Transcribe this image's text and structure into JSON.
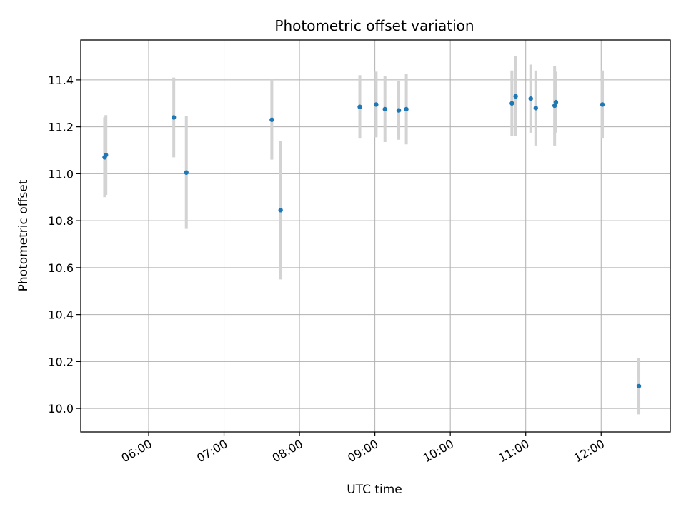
{
  "chart_data": {
    "type": "scatter",
    "title": "Photometric offset variation",
    "xlabel": "UTC time",
    "ylabel": "Photometric offset",
    "x_ticks": [
      "06:00",
      "07:00",
      "08:00",
      "09:00",
      "10:00",
      "11:00",
      "12:00"
    ],
    "x_tick_hours": [
      6,
      7,
      8,
      9,
      10,
      11,
      12
    ],
    "xlim": [
      "05:06",
      "12:55"
    ],
    "y_ticks": [
      "10.0",
      "10.2",
      "10.4",
      "10.6",
      "10.8",
      "11.0",
      "11.2",
      "11.4"
    ],
    "y_tick_values": [
      10.0,
      10.2,
      10.4,
      10.6,
      10.8,
      11.0,
      11.2,
      11.4
    ],
    "ylim": [
      9.9,
      11.57
    ],
    "grid": true,
    "point_color": "#1f77b4",
    "errorbar_color": "#d3d3d3",
    "points": [
      {
        "time": "05:25",
        "y": 11.07,
        "err": 0.17
      },
      {
        "time": "05:26",
        "y": 11.08,
        "err": 0.17
      },
      {
        "time": "06:20",
        "y": 11.24,
        "err": 0.17
      },
      {
        "time": "06:30",
        "y": 11.005,
        "err": 0.24
      },
      {
        "time": "07:38",
        "y": 11.23,
        "err": 0.17
      },
      {
        "time": "07:45",
        "y": 10.845,
        "err": 0.295
      },
      {
        "time": "08:48",
        "y": 11.285,
        "err": 0.135
      },
      {
        "time": "09:01",
        "y": 11.295,
        "err": 0.14
      },
      {
        "time": "09:08",
        "y": 11.275,
        "err": 0.14
      },
      {
        "time": "09:19",
        "y": 11.27,
        "err": 0.125
      },
      {
        "time": "09:25",
        "y": 11.275,
        "err": 0.15
      },
      {
        "time": "10:49",
        "y": 11.3,
        "err": 0.14
      },
      {
        "time": "10:52",
        "y": 11.33,
        "err": 0.17
      },
      {
        "time": "11:04",
        "y": 11.32,
        "err": 0.145
      },
      {
        "time": "11:08",
        "y": 11.28,
        "err": 0.16
      },
      {
        "time": "11:23",
        "y": 11.29,
        "err": 0.17
      },
      {
        "time": "11:24",
        "y": 11.305,
        "err": 0.13
      },
      {
        "time": "12:01",
        "y": 11.295,
        "err": 0.145
      },
      {
        "time": "12:30",
        "y": 10.095,
        "err": 0.12
      }
    ]
  }
}
